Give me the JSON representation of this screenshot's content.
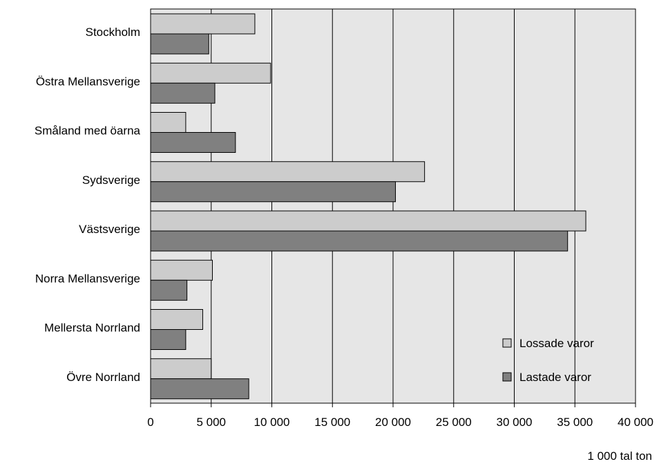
{
  "chart_data": {
    "type": "bar",
    "orientation": "horizontal",
    "categories": [
      "Stockholm",
      "Östra Mellansverige",
      "Småland med öarna",
      "Sydsverige",
      "Västsverige",
      "Norra Mellansverige",
      "Mellersta Norrland",
      "Övre Norrland"
    ],
    "series": [
      {
        "name": "Lossade varor",
        "color": "#cccccc",
        "values": [
          8600,
          9900,
          2900,
          22600,
          35900,
          5100,
          4300,
          5000
        ]
      },
      {
        "name": "Lastade varor",
        "color": "#808080",
        "values": [
          4800,
          5300,
          7000,
          20200,
          34400,
          3000,
          2900,
          8100
        ]
      }
    ],
    "xlim": [
      0,
      40000
    ],
    "x_ticks": [
      0,
      5000,
      10000,
      15000,
      20000,
      25000,
      30000,
      35000,
      40000
    ],
    "x_tick_labels": [
      "0",
      "5 000",
      "10 000",
      "15 000",
      "20 000",
      "25 000",
      "30 000",
      "35 000",
      "40 000"
    ],
    "xlabel": "1 000 tal ton",
    "ylabel": "",
    "title": "",
    "grid": "vertical",
    "plot_background": "#e6e6e6",
    "legend_position": "bottom-right"
  }
}
